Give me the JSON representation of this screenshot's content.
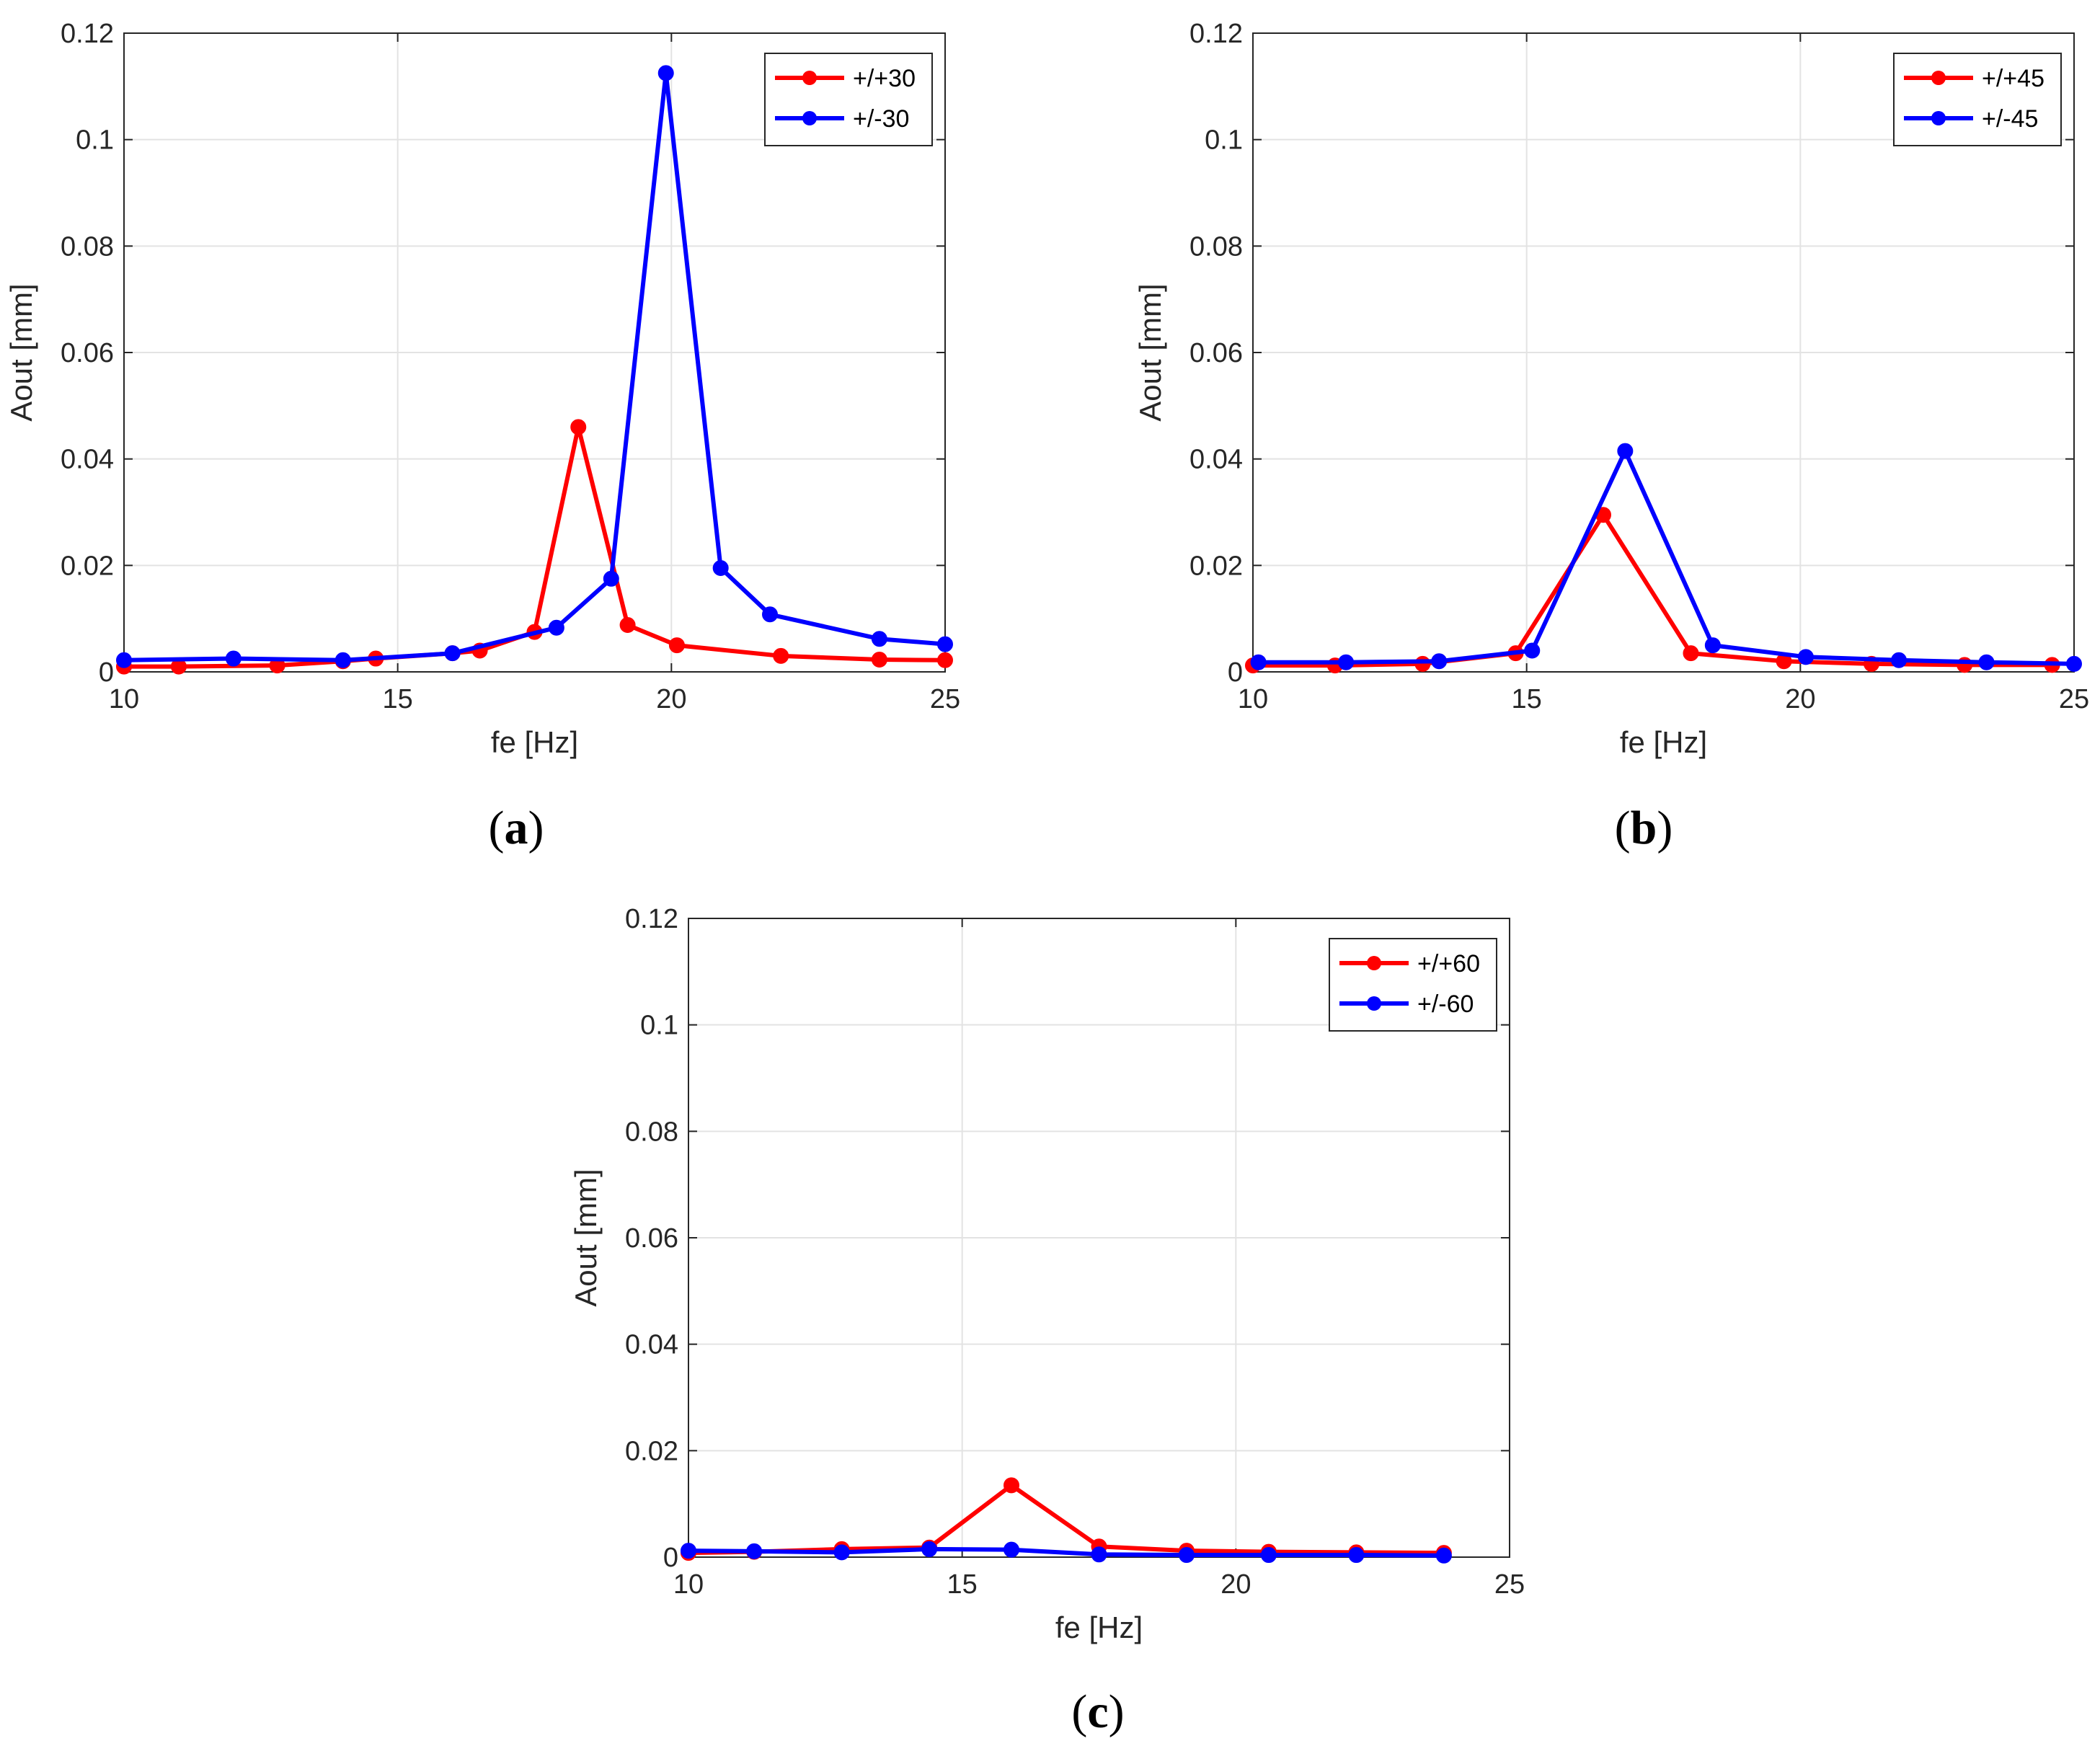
{
  "colors": {
    "red": "#ff0000",
    "blue": "#0000ff",
    "grid": "#e3e3e3",
    "axis": "#262626"
  },
  "chart_data": [
    {
      "type": "line",
      "panel_label": "a",
      "xlabel": "fe [Hz]",
      "ylabel": "Aout [mm]",
      "xlim": [
        10,
        25
      ],
      "ylim": [
        0,
        0.12
      ],
      "xticks": [
        10,
        15,
        20,
        25
      ],
      "xtick_labels": [
        "10",
        "15",
        "20",
        "25"
      ],
      "yticks": [
        0,
        0.02,
        0.04,
        0.06,
        0.08,
        0.1,
        0.12
      ],
      "ytick_labels": [
        "0",
        "0.02",
        "0.04",
        "0.06",
        "0.08",
        "0.1",
        "0.12"
      ],
      "grid": true,
      "legend_position": "top-right",
      "series": [
        {
          "name": "+/+30",
          "color": "#ff0000",
          "x": [
            10,
            11,
            12.8,
            14,
            14.6,
            16,
            16.5,
            17.5,
            18.3,
            19.2,
            20.1,
            22,
            23.8,
            25
          ],
          "y": [
            0.001,
            0.001,
            0.0012,
            0.002,
            0.0025,
            0.0035,
            0.004,
            0.0075,
            0.046,
            0.0088,
            0.005,
            0.003,
            0.0023,
            0.0022
          ]
        },
        {
          "name": "+/-30",
          "color": "#0000ff",
          "x": [
            10,
            12,
            14,
            16,
            17.9,
            18.9,
            19.9,
            20.9,
            21.8,
            23.8,
            25
          ],
          "y": [
            0.0022,
            0.0025,
            0.0022,
            0.0035,
            0.0083,
            0.0175,
            0.1125,
            0.0195,
            0.0108,
            0.0062,
            0.0052
          ]
        }
      ]
    },
    {
      "type": "line",
      "panel_label": "b",
      "xlabel": "fe [Hz]",
      "ylabel": "Aout [mm]",
      "xlim": [
        10,
        25
      ],
      "ylim": [
        0,
        0.12
      ],
      "xticks": [
        10,
        15,
        20,
        25
      ],
      "xtick_labels": [
        "10",
        "15",
        "20",
        "25"
      ],
      "yticks": [
        0,
        0.02,
        0.04,
        0.06,
        0.08,
        0.1,
        0.12
      ],
      "ytick_labels": [
        "0",
        "0.02",
        "0.04",
        "0.06",
        "0.08",
        "0.1",
        "0.12"
      ],
      "grid": true,
      "legend_position": "top-right",
      "series": [
        {
          "name": "+/+45",
          "color": "#ff0000",
          "x": [
            10,
            11.5,
            13.1,
            14.8,
            16.4,
            18,
            19.7,
            21.3,
            23,
            24.6
          ],
          "y": [
            0.0012,
            0.0012,
            0.0015,
            0.0035,
            0.0295,
            0.0035,
            0.002,
            0.0015,
            0.0013,
            0.0013
          ]
        },
        {
          "name": "+/-45",
          "color": "#0000ff",
          "x": [
            10.1,
            11.7,
            13.4,
            15.1,
            16.8,
            18.4,
            20.1,
            21.8,
            23.4,
            25
          ],
          "y": [
            0.0018,
            0.0018,
            0.002,
            0.004,
            0.0415,
            0.005,
            0.0028,
            0.0022,
            0.0018,
            0.0015
          ]
        }
      ]
    },
    {
      "type": "line",
      "panel_label": "c",
      "xlabel": "fe [Hz]",
      "ylabel": "Aout [mm]",
      "xlim": [
        10,
        25
      ],
      "ylim": [
        0,
        0.12
      ],
      "xticks": [
        10,
        15,
        20,
        25
      ],
      "xtick_labels": [
        "10",
        "15",
        "20",
        "25"
      ],
      "yticks": [
        0,
        0.02,
        0.04,
        0.06,
        0.08,
        0.1,
        0.12
      ],
      "ytick_labels": [
        "0",
        "0.02",
        "0.04",
        "0.06",
        "0.08",
        "0.1",
        "0.12"
      ],
      "grid": true,
      "legend_position": "top-right",
      "series": [
        {
          "name": "+/+60",
          "color": "#ff0000",
          "x": [
            10,
            11.2,
            12.8,
            14.4,
            15.9,
            17.5,
            19.1,
            20.6,
            22.2,
            23.8
          ],
          "y": [
            0.0008,
            0.001,
            0.0015,
            0.0018,
            0.0135,
            0.002,
            0.0012,
            0.001,
            0.0009,
            0.0008
          ]
        },
        {
          "name": "+/-60",
          "color": "#0000ff",
          "x": [
            10,
            11.2,
            12.8,
            14.4,
            15.9,
            17.5,
            19.1,
            20.6,
            22.2,
            23.8
          ],
          "y": [
            0.0012,
            0.0011,
            0.0009,
            0.0015,
            0.0014,
            0.0005,
            0.0004,
            0.0004,
            0.0004,
            0.0003
          ]
        }
      ]
    }
  ]
}
